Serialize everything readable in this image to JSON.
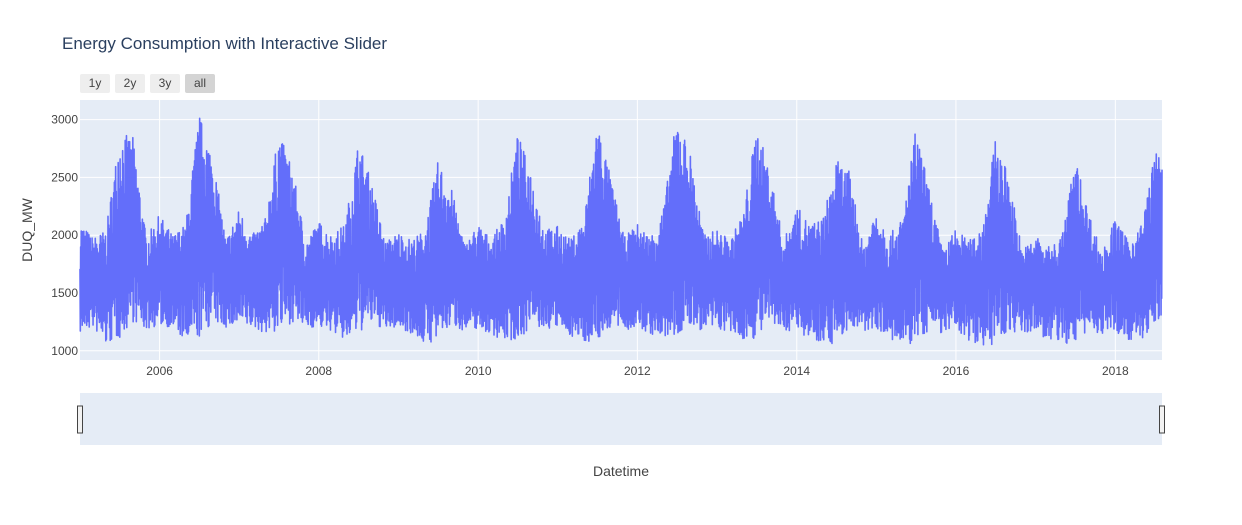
{
  "title": "Energy Consumption with Interactive Slider",
  "range_selector": {
    "buttons": [
      {
        "label": "1y",
        "active": false
      },
      {
        "label": "2y",
        "active": false
      },
      {
        "label": "3y",
        "active": false
      },
      {
        "label": "all",
        "active": true
      }
    ]
  },
  "chart_data": {
    "type": "line",
    "title": "Energy Consumption with Interactive Slider",
    "xlabel": "Datetime",
    "ylabel": "DUQ_MW",
    "x_range": [
      "2005-01-01",
      "2018-08-03"
    ],
    "ylim": [
      920,
      3170
    ],
    "x_ticks": [
      "2006",
      "2008",
      "2010",
      "2012",
      "2014",
      "2016",
      "2018"
    ],
    "y_ticks": [
      1000,
      1500,
      2000,
      2500,
      3000
    ],
    "grid": true,
    "line_color": "#636efa",
    "background_color": "#e5ecf6",
    "series": [
      {
        "x": [
          "2005-01",
          "2005-03",
          "2005-05",
          "2005-07",
          "2005-09",
          "2005-11",
          "2006-01",
          "2006-03",
          "2006-05",
          "2006-07",
          "2006-09",
          "2006-11",
          "2007-01",
          "2007-03",
          "2007-05",
          "2007-07",
          "2007-09",
          "2007-11",
          "2008-01",
          "2008-03",
          "2008-05",
          "2008-07",
          "2008-09",
          "2008-11",
          "2009-01",
          "2009-03",
          "2009-05",
          "2009-07",
          "2009-09",
          "2009-11",
          "2010-01",
          "2010-03",
          "2010-05",
          "2010-07",
          "2010-09",
          "2010-11",
          "2011-01",
          "2011-03",
          "2011-05",
          "2011-07",
          "2011-09",
          "2011-11",
          "2012-01",
          "2012-03",
          "2012-05",
          "2012-07",
          "2012-09",
          "2012-11",
          "2013-01",
          "2013-03",
          "2013-05",
          "2013-07",
          "2013-09",
          "2013-11",
          "2014-01",
          "2014-03",
          "2014-05",
          "2014-07",
          "2014-09",
          "2014-11",
          "2015-01",
          "2015-03",
          "2015-05",
          "2015-07",
          "2015-09",
          "2015-11",
          "2016-01",
          "2016-03",
          "2016-05",
          "2016-07",
          "2016-09",
          "2016-11",
          "2017-01",
          "2017-03",
          "2017-05",
          "2017-07",
          "2017-09",
          "2017-11",
          "2018-01",
          "2018-03",
          "2018-05",
          "2018-07"
        ],
        "max": [
          2120,
          1980,
          2050,
          2880,
          2850,
          1980,
          2180,
          2000,
          2100,
          3050,
          2700,
          1960,
          2230,
          2000,
          2150,
          2890,
          2600,
          1950,
          2120,
          2000,
          2100,
          2820,
          2450,
          1940,
          2030,
          1960,
          2050,
          2650,
          2400,
          1920,
          2100,
          1970,
          2150,
          2880,
          2550,
          2050,
          2080,
          1960,
          2150,
          3010,
          2500,
          1980,
          2100,
          1990,
          2250,
          3050,
          2700,
          2000,
          2050,
          1960,
          2200,
          2950,
          2550,
          1950,
          2250,
          2100,
          2150,
          2650,
          2550,
          1900,
          2250,
          2000,
          2150,
          2930,
          2400,
          1870,
          2060,
          1950,
          2100,
          2840,
          2500,
          1870,
          2000,
          1900,
          2000,
          2680,
          2200,
          1850,
          2150,
          1950,
          2100,
          2710
        ],
        "min": [
          1150,
          1200,
          1050,
          1100,
          1250,
          1180,
          1220,
          1200,
          1070,
          1100,
          1240,
          1200,
          1210,
          1200,
          1150,
          1150,
          1250,
          1200,
          1200,
          1170,
          1080,
          1150,
          1230,
          1180,
          1200,
          1150,
          1060,
          1080,
          1220,
          1170,
          1190,
          1140,
          1090,
          1080,
          1210,
          1180,
          1200,
          1130,
          1080,
          1070,
          1200,
          1180,
          1190,
          1140,
          1100,
          1110,
          1200,
          1170,
          1190,
          1150,
          1090,
          1110,
          1210,
          1170,
          1180,
          1100,
          1080,
          1050,
          1200,
          1150,
          1200,
          1100,
          1020,
          1060,
          1180,
          1150,
          1170,
          1090,
          1050,
          1040,
          1180,
          1130,
          1170,
          1080,
          1060,
          1050,
          1180,
          1140,
          1160,
          1100,
          1080,
          1220
        ]
      }
    ]
  }
}
